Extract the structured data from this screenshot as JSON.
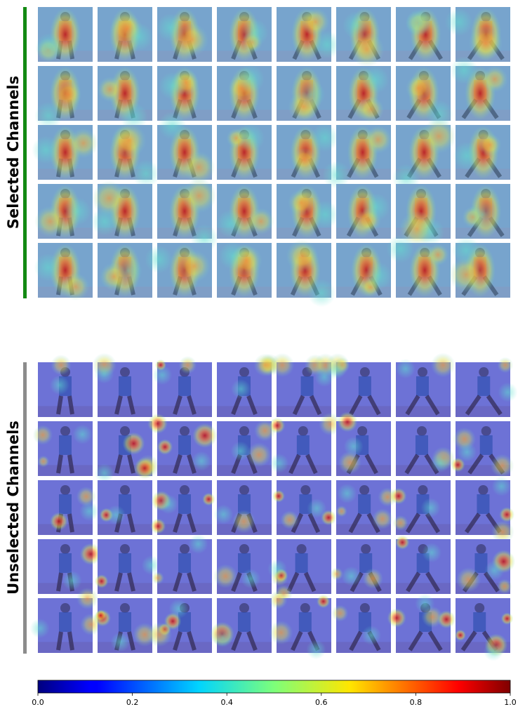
{
  "panels": [
    {
      "label": "Selected Channels",
      "color": "#138a13",
      "rows": 5,
      "columns": 8,
      "kind": "selected"
    },
    {
      "label": "Unselected Channels",
      "color": "#8c8c8c",
      "rows": 5,
      "columns": 8,
      "kind": "unselected"
    }
  ],
  "colorbar": {
    "ticks": [
      {
        "value": 0,
        "label": "0.0"
      },
      {
        "value": 0.2,
        "label": "0.2"
      },
      {
        "value": 0.4,
        "label": "0.4"
      },
      {
        "value": 0.6,
        "label": "0.6"
      },
      {
        "value": 0.8,
        "label": "0.8"
      },
      {
        "value": 1,
        "label": "1.0"
      }
    ]
  }
}
